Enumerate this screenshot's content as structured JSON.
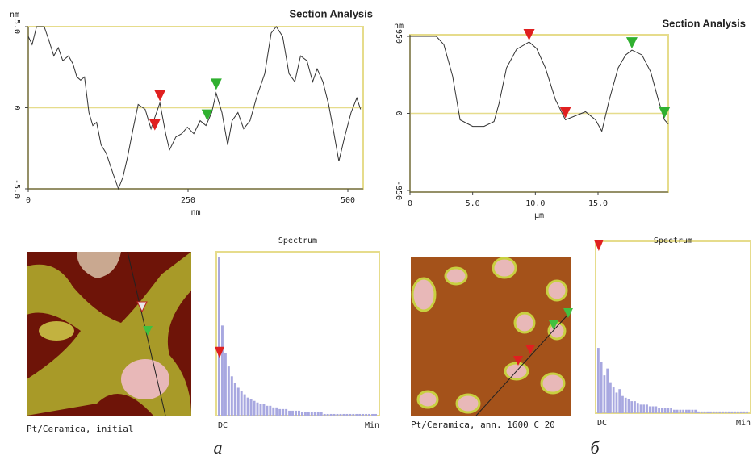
{
  "chart_data": [
    {
      "type": "line",
      "title": "Section Analysis",
      "y_label": "nm",
      "x_label": "nm",
      "color": "#333333",
      "frame_color": "#e6dc8c",
      "x": [
        0,
        6,
        13,
        25,
        32,
        40,
        47,
        54,
        63,
        70,
        76,
        82,
        88,
        95,
        101,
        107,
        114,
        122,
        133,
        141,
        148,
        155,
        164,
        172,
        183,
        192,
        198,
        206,
        215,
        221,
        231,
        240,
        249,
        259,
        269,
        278,
        287,
        294,
        303,
        312,
        319,
        328,
        337,
        347,
        357,
        370,
        380,
        388,
        398,
        408,
        417,
        426,
        436,
        445,
        452,
        461,
        470,
        477,
        486,
        495,
        505,
        514,
        520
      ],
      "values": [
        4.4,
        3.9,
        5.0,
        5.0,
        4.2,
        3.2,
        3.7,
        2.9,
        3.2,
        2.7,
        1.9,
        1.7,
        1.9,
        -0.3,
        -1.1,
        -0.9,
        -2.3,
        -2.8,
        -4.1,
        -5.0,
        -4.3,
        -3.1,
        -1.3,
        0.2,
        -0.1,
        -1.3,
        -0.6,
        0.3,
        -1.6,
        -2.6,
        -1.8,
        -1.6,
        -1.2,
        -1.6,
        -0.8,
        -1.1,
        -0.3,
        0.9,
        -0.3,
        -2.3,
        -0.8,
        -0.3,
        -1.3,
        -0.8,
        0.6,
        2.1,
        4.6,
        5.0,
        4.4,
        2.1,
        1.6,
        3.2,
        2.9,
        1.6,
        2.4,
        1.6,
        0.2,
        -1.3,
        -3.3,
        -1.8,
        -0.3,
        0.6,
        -0.1
      ],
      "xlim": [
        0,
        524
      ],
      "ylim": [
        -5,
        5
      ],
      "xticks": [
        0,
        250,
        500
      ],
      "yticks": [
        {
          "value": 5,
          "label": "5.0"
        },
        0,
        {
          "value": -5,
          "label": "-5.0"
        }
      ],
      "reference_line": 0,
      "cursors": [
        {
          "x": 206,
          "y": 0.3,
          "color": "#e02020"
        },
        {
          "x": 198,
          "y": -1.5,
          "color": "#e02020"
        },
        {
          "x": 294,
          "y": 1.0,
          "color": "#30b030"
        },
        {
          "x": 280,
          "y": -0.9,
          "color": "#30b030"
        }
      ]
    },
    {
      "type": "line",
      "title": "Section Analysis",
      "y_label": "nm",
      "x_label": "µm",
      "color": "#333333",
      "frame_color": "#e6dc8c",
      "x": [
        0,
        2.1,
        2.7,
        3.4,
        4.0,
        5.0,
        5.9,
        6.7,
        7.1,
        7.7,
        8.5,
        9.5,
        10.1,
        10.8,
        11.6,
        12.4,
        13.2,
        14.0,
        14.8,
        15.3,
        15.9,
        16.6,
        17.2,
        17.7,
        18.5,
        19.2,
        19.8,
        20.3,
        20.6
      ],
      "values": [
        950,
        950,
        850,
        460,
        -80,
        -160,
        -160,
        -100,
        120,
        560,
        790,
        880,
        800,
        560,
        170,
        -80,
        -30,
        20,
        -80,
        -220,
        170,
        560,
        720,
        780,
        720,
        510,
        170,
        -80,
        -130
      ],
      "xlim": [
        0,
        20.6
      ],
      "ylim": [
        -970,
        970
      ],
      "xticks": [
        0,
        {
          "value": 5,
          "label": "5.0"
        },
        {
          "value": 10,
          "label": "10.0"
        },
        {
          "value": 15,
          "label": "15.0"
        }
      ],
      "yticks": [
        950,
        0,
        -950
      ],
      "reference_line": 0,
      "cursors": [
        {
          "x": 9.5,
          "y": 880,
          "color": "#e02020"
        },
        {
          "x": 12.4,
          "y": -80,
          "color": "#e02020"
        },
        {
          "x": 17.7,
          "y": 780,
          "color": "#30b030"
        },
        {
          "x": 20.3,
          "y": -80,
          "color": "#30b030"
        }
      ]
    },
    {
      "type": "bar",
      "title": "Spectrum",
      "x_start_label": "DC",
      "x_end_label": "Min",
      "color": "#a8a8e0",
      "frame_color": "#e6dc8c",
      "ylim": [
        0,
        100
      ],
      "values": [
        97,
        55,
        38,
        30,
        24,
        20,
        17,
        15,
        13,
        11,
        10,
        9,
        8,
        7,
        7,
        6,
        6,
        5,
        5,
        4,
        4,
        4,
        3,
        3,
        3,
        3,
        2,
        2,
        2,
        2,
        2,
        2,
        2,
        1,
        1,
        1,
        1,
        1,
        1,
        1,
        1,
        1,
        1,
        1,
        1,
        1,
        1,
        1,
        1,
        1
      ],
      "cursor": {
        "value": 41,
        "color": "#e02020"
      }
    },
    {
      "type": "bar",
      "title": "Spectrum",
      "x_start_label": "DC",
      "x_end_label": "Min",
      "color": "#a8a8e0",
      "frame_color": "#e6dc8c",
      "ylim": [
        0,
        100
      ],
      "values": [
        38,
        30,
        22,
        26,
        18,
        15,
        12,
        14,
        10,
        9,
        8,
        7,
        7,
        6,
        5,
        5,
        5,
        4,
        4,
        4,
        3,
        3,
        3,
        3,
        3,
        2,
        2,
        2,
        2,
        2,
        2,
        2,
        2,
        1,
        1,
        1,
        1,
        1,
        1,
        1,
        1,
        1,
        1,
        1,
        1,
        1,
        1,
        1,
        1,
        1
      ],
      "cursor": {
        "value": 100,
        "color": "#e02020"
      }
    }
  ],
  "images": [
    {
      "caption": "Pt/Ceramica, initial"
    },
    {
      "caption": "Pt/Ceramica, ann. 1600 C 20"
    }
  ],
  "panel_labels": [
    "а",
    "б"
  ]
}
